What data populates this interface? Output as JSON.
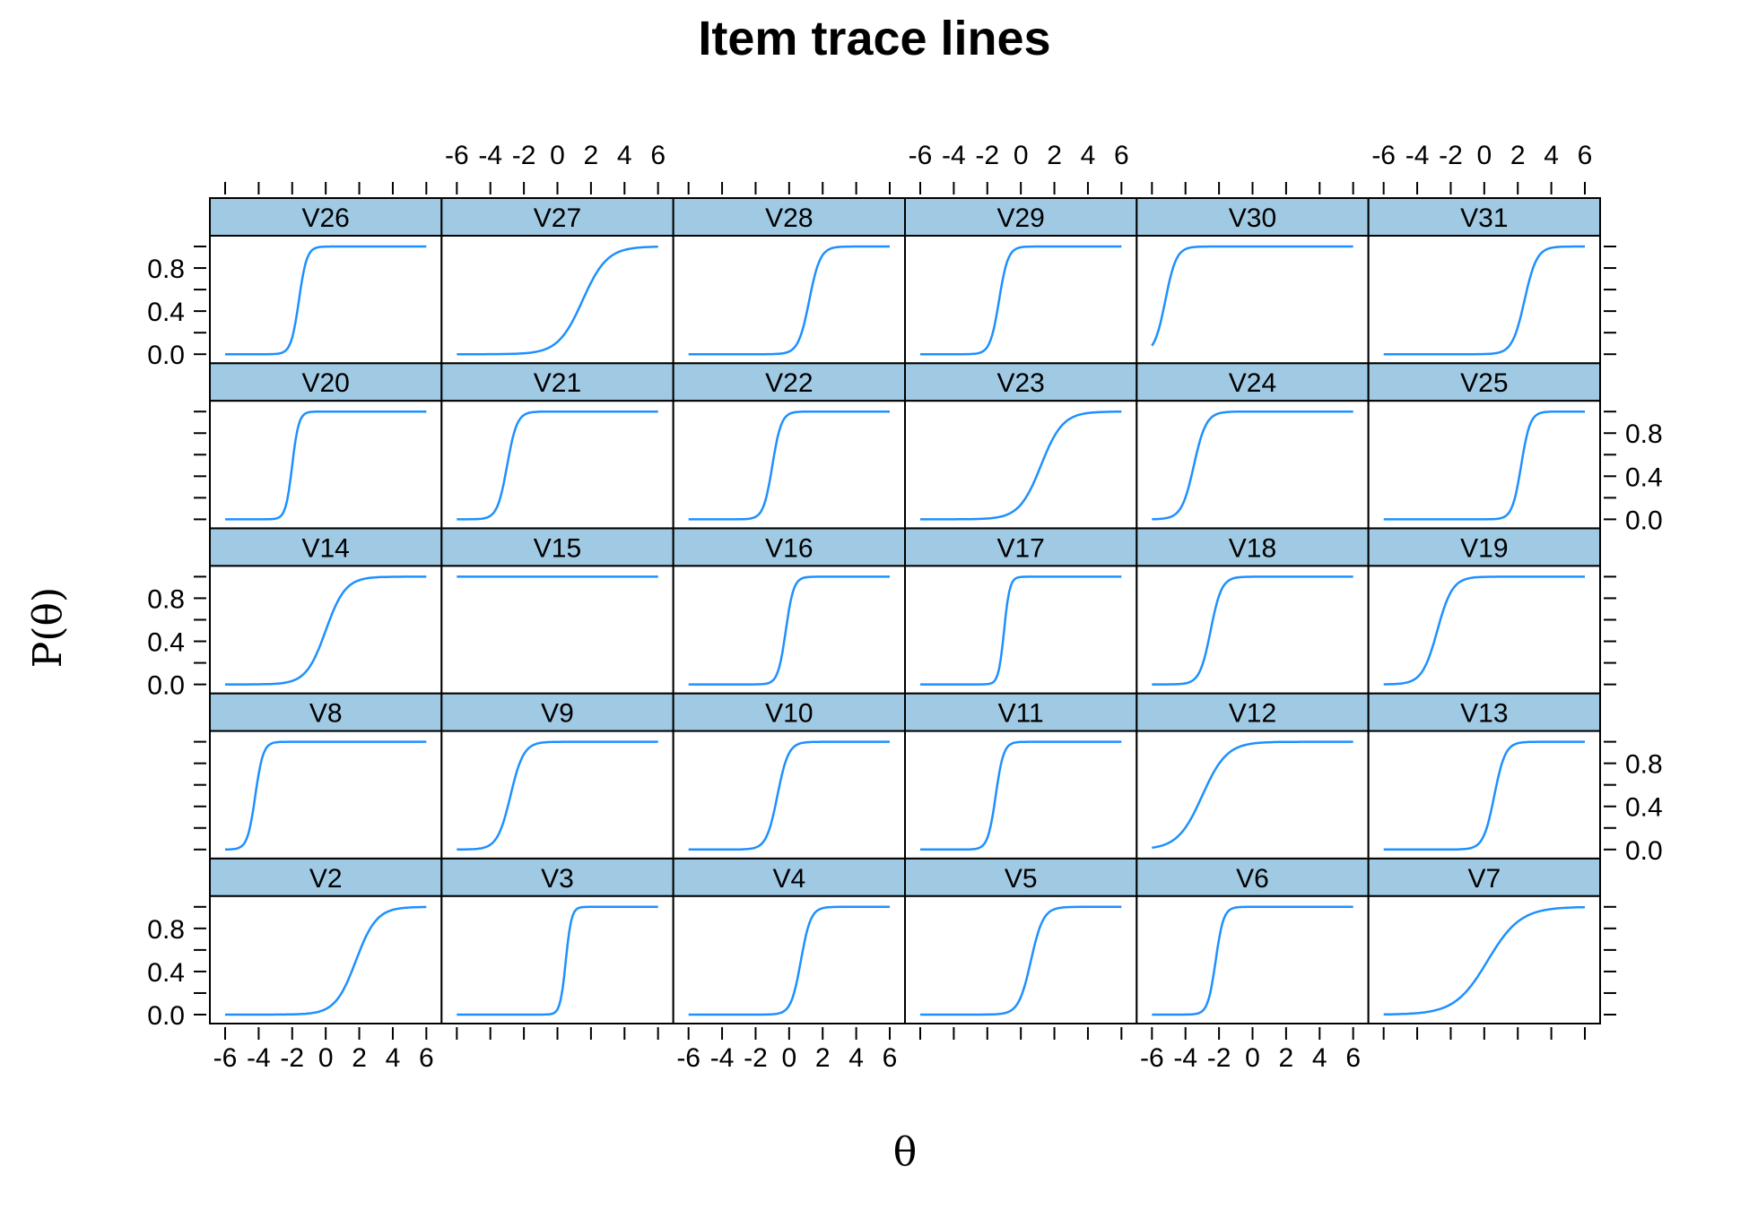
{
  "chart_data": {
    "type": "line",
    "title": "Item trace lines",
    "xlabel": "θ",
    "ylabel": "P(θ)",
    "xlim": [
      -6,
      6
    ],
    "ylim": [
      0,
      1
    ],
    "x_ticks": [
      -6,
      -4,
      -2,
      0,
      2,
      4,
      6
    ],
    "x_tick_labels": [
      "-6",
      "-4",
      "-2",
      "0",
      "2",
      "4",
      "6"
    ],
    "y_ticks": [
      0.0,
      0.4,
      0.8
    ],
    "y_tick_labels": [
      "0.0",
      "0.4",
      "0.8"
    ],
    "layout": {
      "columns": 6,
      "rows": 5
    },
    "line_color": "#1e90ff",
    "strip_color": "#a0cae3",
    "panels": [
      {
        "name": "V2",
        "a": 0.95,
        "b": 1.8
      },
      {
        "name": "V3",
        "a": 3.5,
        "b": 0.5
      },
      {
        "name": "V4",
        "a": 2.0,
        "b": 0.7
      },
      {
        "name": "V5",
        "a": 1.6,
        "b": 0.6
      },
      {
        "name": "V6",
        "a": 2.5,
        "b": -2.2
      },
      {
        "name": "V7",
        "a": 0.6,
        "b": 0.2
      },
      {
        "name": "V8",
        "a": 2.5,
        "b": -4.2
      },
      {
        "name": "V9",
        "a": 1.5,
        "b": -2.8
      },
      {
        "name": "V10",
        "a": 1.8,
        "b": -0.7
      },
      {
        "name": "V11",
        "a": 2.5,
        "b": -1.5
      },
      {
        "name": "V12",
        "a": 0.8,
        "b": -3.0
      },
      {
        "name": "V13",
        "a": 1.8,
        "b": 0.6
      },
      {
        "name": "V14",
        "a": 1.0,
        "b": 0.0
      },
      {
        "name": "V15",
        "a": 1.0,
        "b": -30.0
      },
      {
        "name": "V16",
        "a": 2.5,
        "b": -0.2
      },
      {
        "name": "V17",
        "a": 3.5,
        "b": -1.0
      },
      {
        "name": "V18",
        "a": 1.8,
        "b": -2.5
      },
      {
        "name": "V19",
        "a": 1.3,
        "b": -2.8
      },
      {
        "name": "V20",
        "a": 3.0,
        "b": -2.0
      },
      {
        "name": "V21",
        "a": 2.0,
        "b": -3.0
      },
      {
        "name": "V22",
        "a": 2.2,
        "b": -1.0
      },
      {
        "name": "V23",
        "a": 0.9,
        "b": 1.2
      },
      {
        "name": "V24",
        "a": 1.6,
        "b": -3.5
      },
      {
        "name": "V25",
        "a": 2.2,
        "b": 2.2
      },
      {
        "name": "V26",
        "a": 2.5,
        "b": -1.6
      },
      {
        "name": "V27",
        "a": 0.8,
        "b": 1.5
      },
      {
        "name": "V28",
        "a": 1.8,
        "b": 1.2
      },
      {
        "name": "V29",
        "a": 2.2,
        "b": -1.3
      },
      {
        "name": "V30",
        "a": 1.8,
        "b": -5.2
      },
      {
        "name": "V31",
        "a": 1.6,
        "b": 2.4
      }
    ]
  }
}
